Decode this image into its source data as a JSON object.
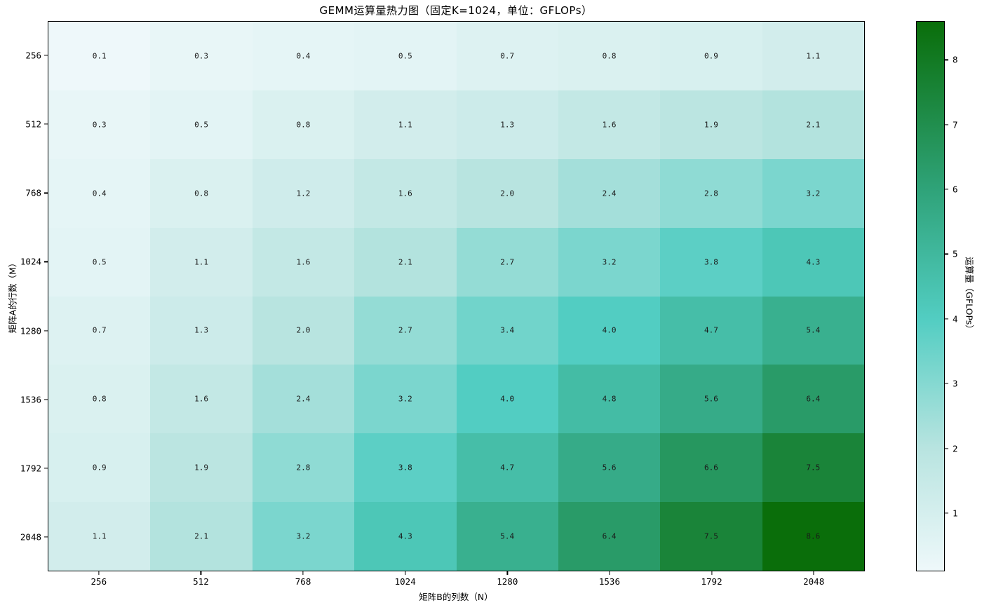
{
  "figure": {
    "background": "#ffffff",
    "axis_color": "#000000"
  },
  "chart_data": {
    "type": "heatmap",
    "title": "GEMM运算量热力图（固定K=1024，单位：GFLOPs）",
    "xlabel": "矩阵B的列数（N）",
    "ylabel": "矩阵A的行数（M）",
    "colorbar_label": "运算量（GFLOPs）",
    "x_ticks": [
      "256",
      "512",
      "768",
      "1024",
      "1280",
      "1536",
      "1792",
      "2048"
    ],
    "y_ticks": [
      "256",
      "512",
      "768",
      "1024",
      "1280",
      "1536",
      "1792",
      "2048"
    ],
    "colorbar_ticks": [
      1,
      2,
      3,
      4,
      5,
      6,
      7,
      8
    ],
    "vmin": 0.1,
    "vmax": 8.6,
    "fixed_k": 1024,
    "unit": "GFLOPs",
    "values": [
      [
        0.1,
        0.3,
        0.4,
        0.5,
        0.7,
        0.8,
        0.9,
        1.1
      ],
      [
        0.3,
        0.5,
        0.8,
        1.1,
        1.3,
        1.6,
        1.9,
        2.1
      ],
      [
        0.4,
        0.8,
        1.2,
        1.6,
        2.0,
        2.4,
        2.8,
        3.2
      ],
      [
        0.5,
        1.1,
        1.6,
        2.1,
        2.7,
        3.2,
        3.8,
        4.3
      ],
      [
        0.7,
        1.3,
        2.0,
        2.7,
        3.4,
        4.0,
        4.7,
        5.4
      ],
      [
        0.8,
        1.6,
        2.4,
        3.2,
        4.0,
        4.8,
        5.6,
        6.4
      ],
      [
        0.9,
        1.9,
        2.8,
        3.8,
        4.7,
        5.6,
        6.6,
        7.5
      ],
      [
        1.1,
        2.1,
        3.2,
        4.3,
        5.4,
        6.4,
        7.5,
        8.6
      ]
    ],
    "annotation_color": "#1a1a1a",
    "colormap_stops": [
      [
        0.0,
        "#eef8fa"
      ],
      [
        0.2235,
        "#b8e4e0"
      ],
      [
        0.4588,
        "#52cdc2"
      ],
      [
        0.694,
        "#2fa379"
      ],
      [
        1.0,
        "#0a6e0a"
      ]
    ],
    "grid": false,
    "legend_position": "colorbar-right"
  }
}
